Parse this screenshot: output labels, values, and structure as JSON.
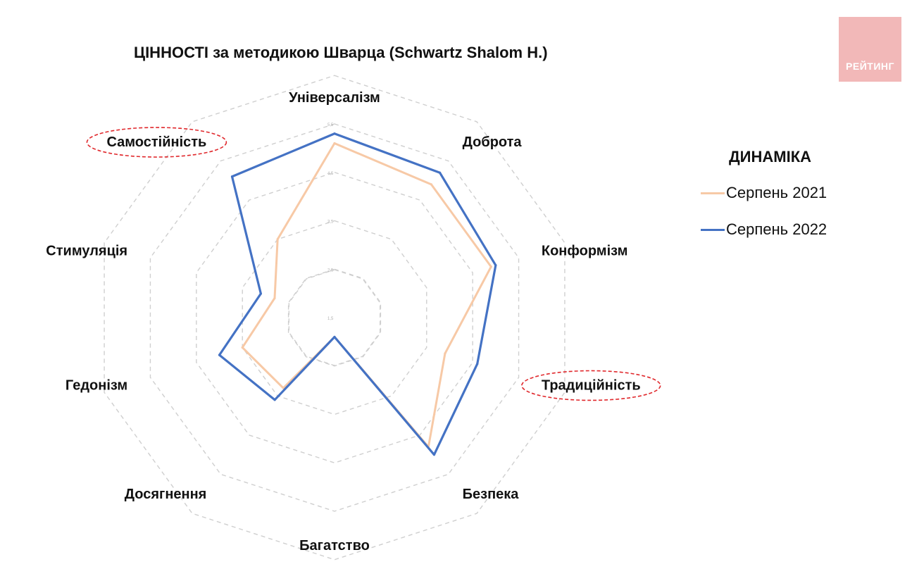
{
  "title": "ЦІННОСТІ за методикою Шварца (Schwartz Shalom H.)",
  "logo_text": "РЕЙТИНГ",
  "legend_title": "ДИНАМІКА",
  "chart_data": {
    "type": "radar",
    "categories": [
      "Універсалізм",
      "Доброта",
      "Конформізм",
      "Традиційність",
      "Безпека",
      "Багатство",
      "Досягнення",
      "Гедонізм",
      "Стимуляція",
      "Самостійність"
    ],
    "ticks": [
      "1,5",
      "2,5",
      "3,5",
      "4,5",
      "5,5"
    ],
    "range": [
      1.5,
      5.5
    ],
    "highlighted": [
      "Самостійність",
      "Традиційність"
    ],
    "series": [
      {
        "name": "Серпень 2021",
        "color": "#f7c9a6",
        "values": [
          5.1,
          4.9,
          4.9,
          3.9,
          4.8,
          1.9,
          3.3,
          3.5,
          2.8,
          3.5
        ]
      },
      {
        "name": "Серпень 2022",
        "color": "#4472c4",
        "values": [
          5.3,
          5.2,
          5.0,
          4.6,
          5.0,
          1.9,
          3.6,
          4.0,
          3.1,
          5.1
        ]
      }
    ]
  }
}
